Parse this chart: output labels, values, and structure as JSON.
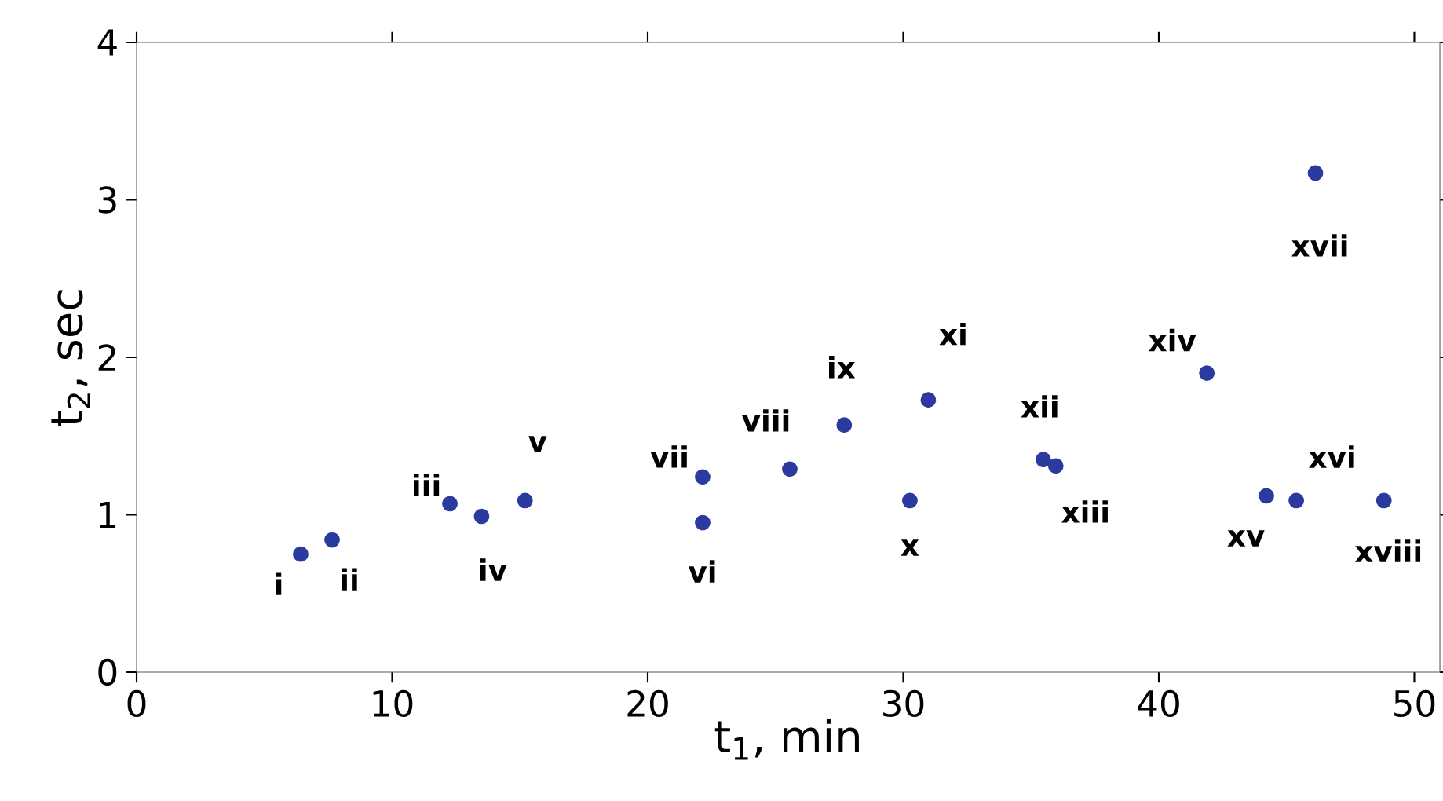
{
  "chart_data": {
    "type": "scatter",
    "xlabel": "t$_{1}$, min",
    "ylabel": "t$_{2}$, sec",
    "x": [
      6.42,
      7.65,
      12.26,
      13.5,
      15.2,
      22.15,
      22.15,
      25.56,
      27.69,
      30.26,
      30.98,
      35.48,
      35.97,
      41.88,
      44.21,
      45.38,
      46.13,
      48.81
    ],
    "values": [
      0.75,
      0.84,
      1.07,
      0.99,
      1.09,
      0.95,
      1.24,
      1.29,
      1.57,
      1.09,
      1.73,
      1.35,
      1.31,
      1.9,
      1.12,
      1.09,
      3.17,
      1.09
    ],
    "color": "#2b3a9e",
    "xlim": [
      0,
      51
    ],
    "ylim": [
      0,
      4
    ],
    "xticks": [
      0,
      10,
      20,
      30,
      40,
      50
    ],
    "yticks": [
      0,
      1,
      2,
      3,
      4
    ],
    "annotations": [
      {
        "text": "i",
        "x": 6.42,
        "y": 0.75
      },
      {
        "text": "ii",
        "x": 7.65,
        "y": 0.84
      },
      {
        "text": "iii",
        "x": 12.26,
        "y": 1.07
      },
      {
        "text": "iv",
        "x": 13.5,
        "y": 0.99
      },
      {
        "text": "v",
        "x": 15.2,
        "y": 1.09
      },
      {
        "text": "vi",
        "x": 22.15,
        "y": 0.95
      },
      {
        "text": "vii",
        "x": 22.15,
        "y": 1.24
      },
      {
        "text": "viii",
        "x": 25.56,
        "y": 1.29
      },
      {
        "text": "ix",
        "x": 27.69,
        "y": 1.57
      },
      {
        "text": "x",
        "x": 30.26,
        "y": 1.09
      },
      {
        "text": "xi",
        "x": 30.98,
        "y": 1.73
      },
      {
        "text": "xii",
        "x": 35.48,
        "y": 1.35
      },
      {
        "text": "xiii",
        "x": 35.97,
        "y": 1.31
      },
      {
        "text": "xiv",
        "x": 41.88,
        "y": 1.9
      },
      {
        "text": "xv",
        "x": 44.21,
        "y": 1.12
      },
      {
        "text": "xvi",
        "x": 45.38,
        "y": 1.09
      },
      {
        "text": "xvii",
        "x": 46.13,
        "y": 3.17
      },
      {
        "text": "xviii",
        "x": 48.81,
        "y": 1.09
      }
    ]
  }
}
